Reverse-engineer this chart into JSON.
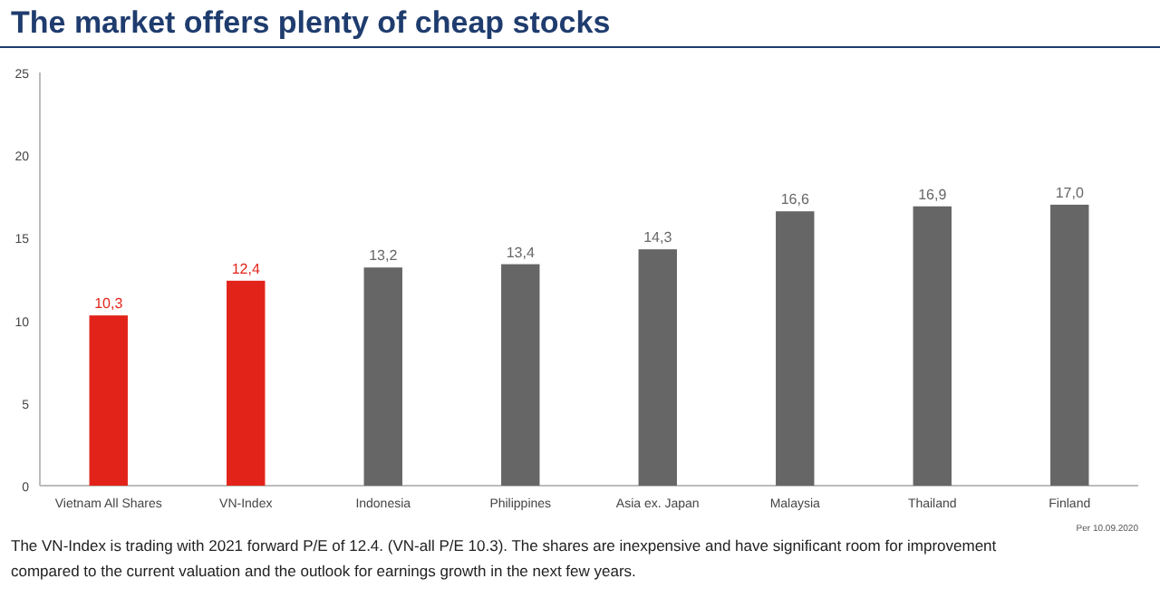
{
  "chart_data": {
    "type": "bar",
    "title": "The market offers plenty of cheap stocks",
    "categories": [
      "Vietnam All Shares",
      "VN-Index",
      "Indonesia",
      "Philippines",
      "Asia ex. Japan",
      "Malaysia",
      "Thailand",
      "Finland"
    ],
    "values": [
      10.3,
      12.4,
      13.2,
      13.4,
      14.3,
      16.6,
      16.9,
      17.0
    ],
    "colors": [
      "#e2231a",
      "#e2231a",
      "#666666",
      "#666666",
      "#666666",
      "#666666",
      "#666666",
      "#666666"
    ],
    "value_labels": [
      "10,3",
      "12,4",
      "13,2",
      "13,4",
      "14,3",
      "16,6",
      "16,9",
      "17,0"
    ],
    "ylim": [
      0,
      25
    ],
    "yticks": [
      0,
      5,
      10,
      15,
      20,
      25
    ],
    "grid": false,
    "annotations": [
      "Per 10.09.2020",
      "The VN-Index is trading with 2021 forward P/E of 12.4. (VN-all P/E 10.3). The shares are inexpensive and have significant room for improvement compared to the current valuation and the outlook for earnings growth in the next few years."
    ]
  }
}
